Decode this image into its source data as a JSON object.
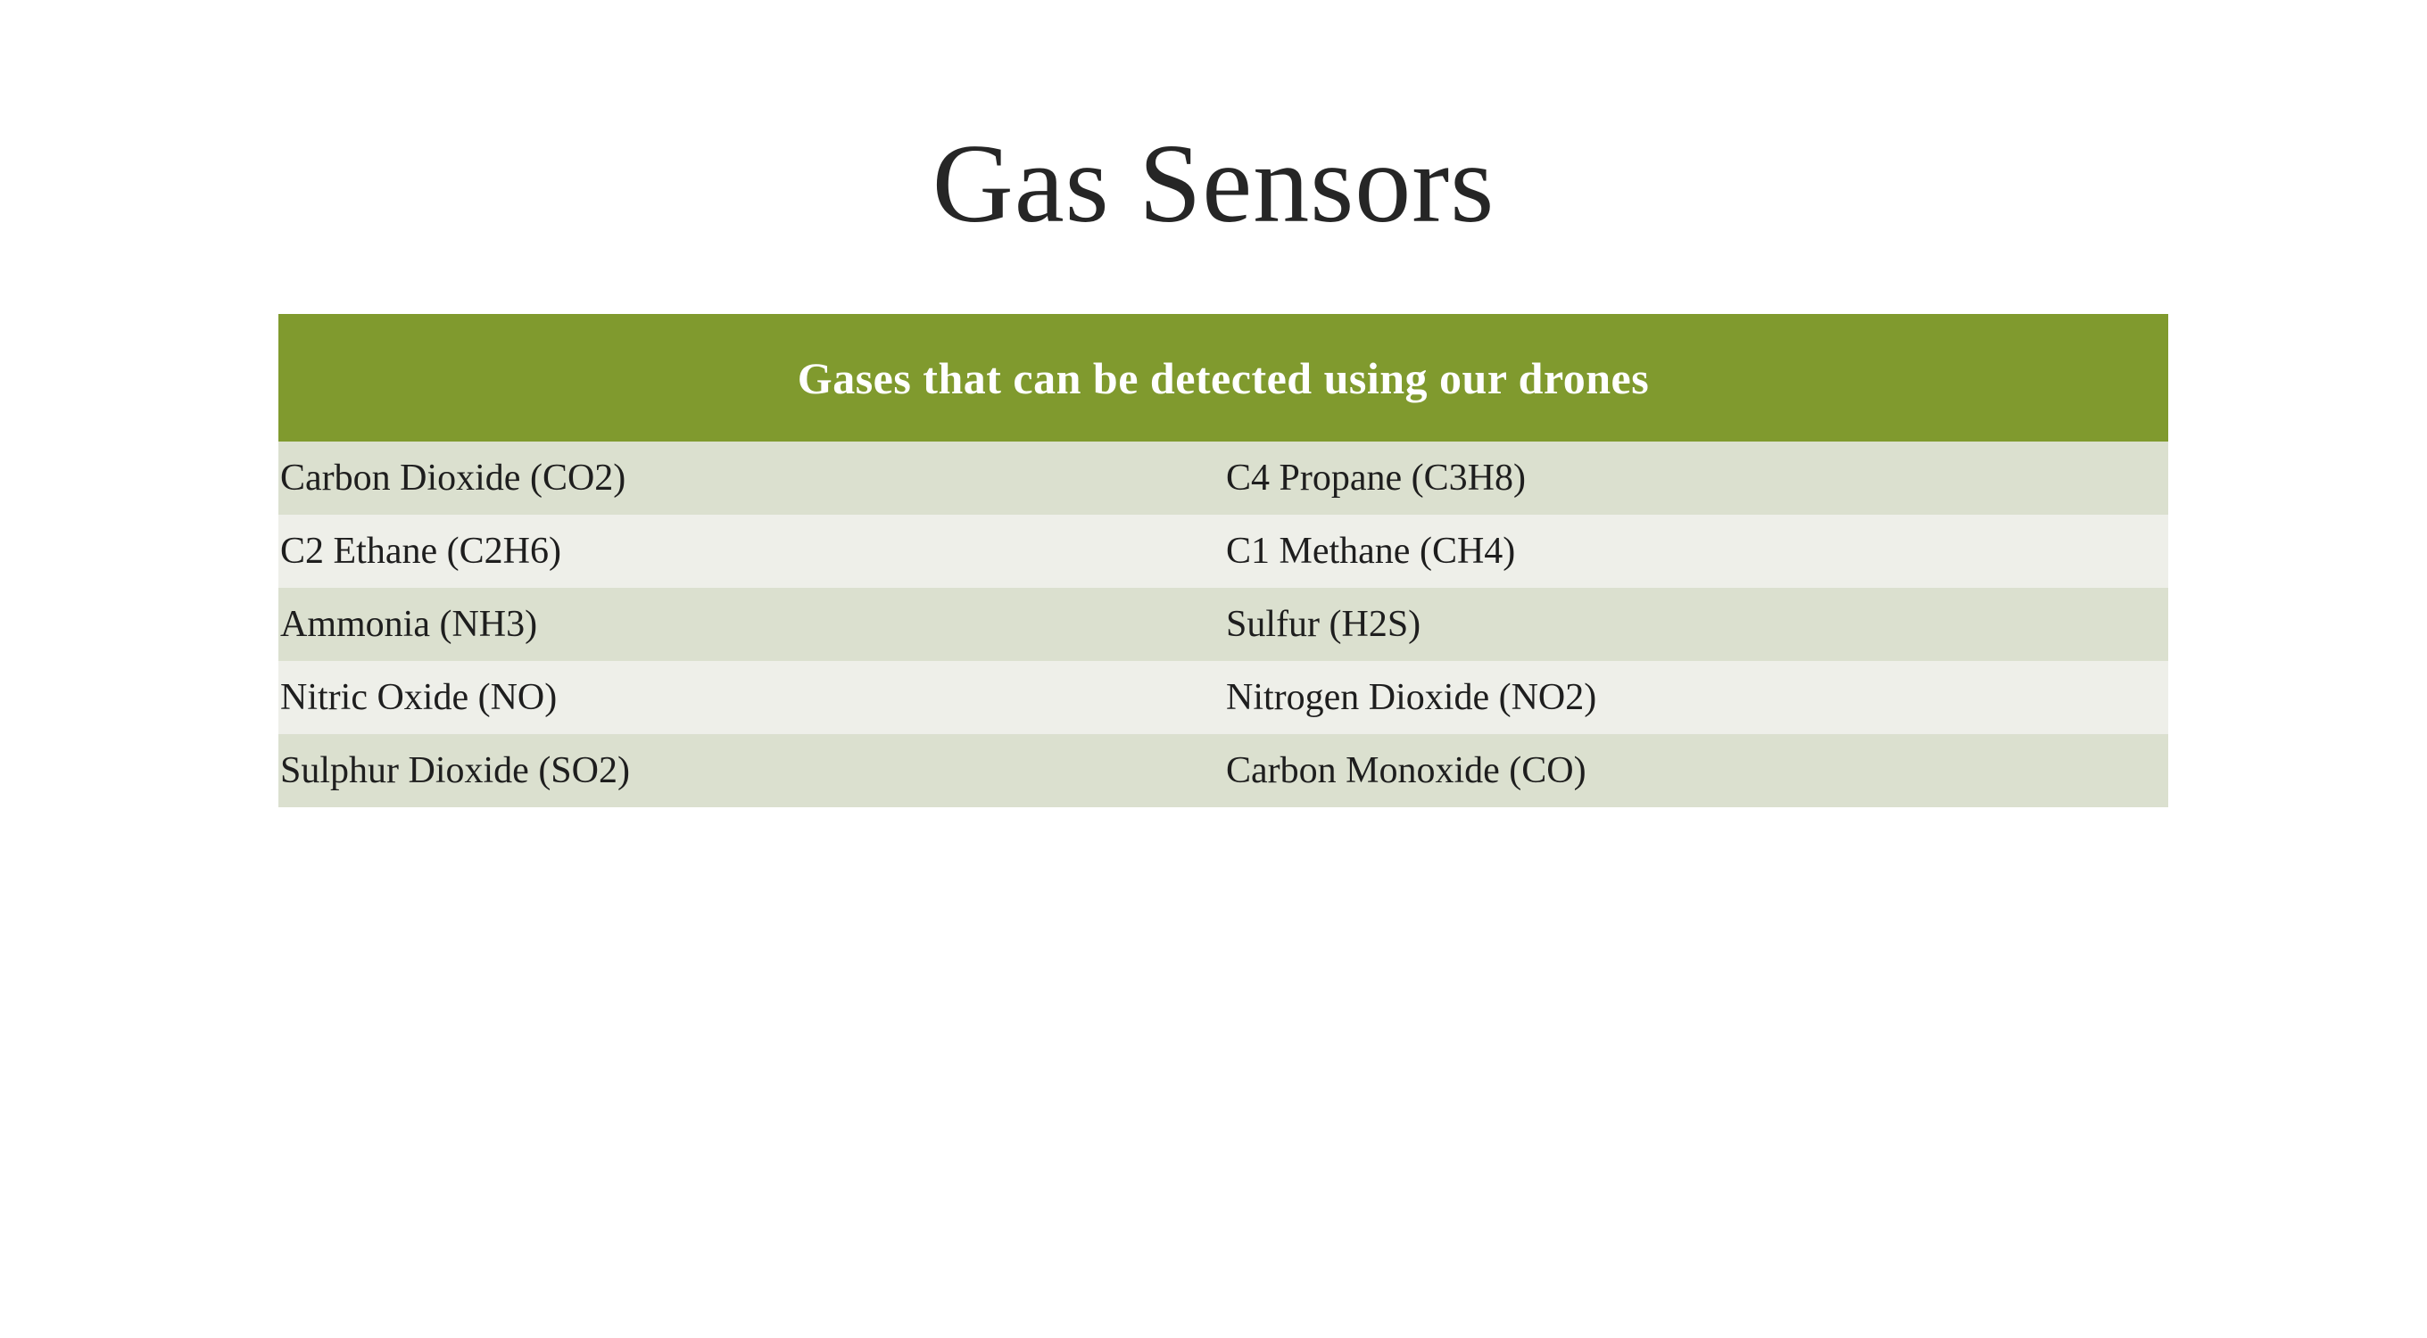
{
  "slide": {
    "title": "Gas Sensors"
  },
  "table": {
    "header": "Gases that can be detected using our drones",
    "rows": [
      [
        "Carbon Dioxide (CO2)",
        "C4 Propane (C3H8)"
      ],
      [
        "C2 Ethane (C2H6)",
        "C1 Methane (CH4)"
      ],
      [
        "Ammonia (NH3)",
        "Sulfur (H2S)"
      ],
      [
        "Nitric Oxide (NO)",
        "Nitrogen Dioxide (NO2)"
      ],
      [
        "Sulphur Dioxide (SO2)",
        "Carbon Monoxide (CO)"
      ]
    ]
  },
  "colors": {
    "header_bg": "#809a2e",
    "row_band_dark": "#dbe0cf",
    "row_band_light": "#eeefe9"
  }
}
